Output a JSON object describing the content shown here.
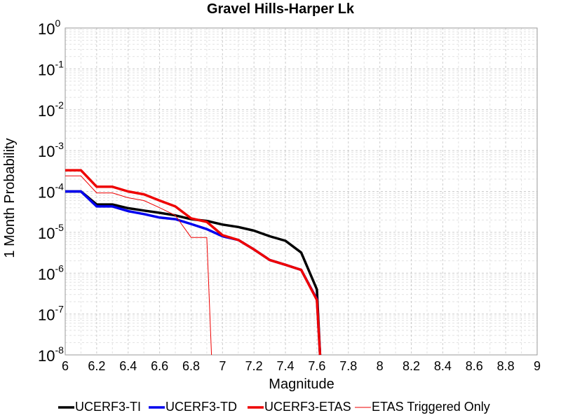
{
  "chart_data": {
    "type": "line",
    "title": "Gravel Hills-Harper Lk",
    "xlabel": "Magnitude",
    "ylabel": "1 Month Probability",
    "xlim": [
      6,
      9
    ],
    "ylim": [
      1e-08,
      1
    ],
    "yscale": "log",
    "grid": true,
    "legend_position": "bottom",
    "xticks": [
      "6",
      "6.2",
      "6.4",
      "6.6",
      "6.8",
      "7",
      "7.2",
      "7.4",
      "7.6",
      "7.8",
      "8",
      "8.2",
      "8.4",
      "8.6",
      "8.8",
      "9"
    ],
    "yticks": [
      {
        "base": "10",
        "exp": "-8",
        "value": 1e-08
      },
      {
        "base": "10",
        "exp": "-7",
        "value": 1e-07
      },
      {
        "base": "10",
        "exp": "-6",
        "value": 1e-06
      },
      {
        "base": "10",
        "exp": "-5",
        "value": 1e-05
      },
      {
        "base": "10",
        "exp": "-4",
        "value": 0.0001
      },
      {
        "base": "10",
        "exp": "-3",
        "value": 0.001
      },
      {
        "base": "10",
        "exp": "-2",
        "value": 0.01
      },
      {
        "base": "10",
        "exp": "-1",
        "value": 0.1
      },
      {
        "base": "10",
        "exp": "0",
        "value": 1
      }
    ],
    "series": [
      {
        "name": "UCERF3-TI",
        "color": "#000000",
        "width": 3.5,
        "points": [
          [
            6.0,
            0.0001
          ],
          [
            6.1,
            0.0001
          ],
          [
            6.2,
            4.8e-05
          ],
          [
            6.3,
            4.8e-05
          ],
          [
            6.4,
            3.9e-05
          ],
          [
            6.5,
            3.4e-05
          ],
          [
            6.6,
            3e-05
          ],
          [
            6.7,
            2.6e-05
          ],
          [
            6.8,
            2.1e-05
          ],
          [
            6.9,
            1.9e-05
          ],
          [
            7.0,
            1.55e-05
          ],
          [
            7.1,
            1.35e-05
          ],
          [
            7.2,
            1.1e-05
          ],
          [
            7.3,
            8e-06
          ],
          [
            7.4,
            6.2e-06
          ],
          [
            7.5,
            3.2e-06
          ],
          [
            7.6,
            4e-07
          ],
          [
            7.62,
            1e-08
          ]
        ]
      },
      {
        "name": "UCERF3-TD",
        "color": "#0000ee",
        "width": 3.5,
        "points": [
          [
            6.0,
            0.0001
          ],
          [
            6.1,
            0.0001
          ],
          [
            6.2,
            4.3e-05
          ],
          [
            6.3,
            4.3e-05
          ],
          [
            6.4,
            3.3e-05
          ],
          [
            6.5,
            2.8e-05
          ],
          [
            6.6,
            2.3e-05
          ],
          [
            6.7,
            2.1e-05
          ],
          [
            6.8,
            1.6e-05
          ],
          [
            6.9,
            1.2e-05
          ],
          [
            7.0,
            8e-06
          ],
          [
            7.1,
            6.5e-06
          ],
          [
            7.2,
            3.8e-06
          ],
          [
            7.3,
            2.1e-06
          ],
          [
            7.4,
            1.6e-06
          ],
          [
            7.5,
            1.2e-06
          ],
          [
            7.6,
            2.3e-07
          ],
          [
            7.62,
            1e-08
          ]
        ]
      },
      {
        "name": "UCERF3-ETAS",
        "color": "#ee0000",
        "width": 3.5,
        "points": [
          [
            6.0,
            0.00033
          ],
          [
            6.1,
            0.00033
          ],
          [
            6.2,
            0.00013
          ],
          [
            6.3,
            0.00013
          ],
          [
            6.4,
            0.0001
          ],
          [
            6.5,
            8.5e-05
          ],
          [
            6.6,
            6e-05
          ],
          [
            6.7,
            4.3e-05
          ],
          [
            6.8,
            2.2e-05
          ],
          [
            6.9,
            1.8e-05
          ],
          [
            7.0,
            8.5e-06
          ],
          [
            7.1,
            6.5e-06
          ],
          [
            7.2,
            3.8e-06
          ],
          [
            7.3,
            2.1e-06
          ],
          [
            7.4,
            1.6e-06
          ],
          [
            7.5,
            1.2e-06
          ],
          [
            7.6,
            2.2e-07
          ],
          [
            7.62,
            1e-08
          ]
        ]
      },
      {
        "name": "ETAS Triggered Only",
        "color": "#ee0000",
        "width": 1,
        "points": [
          [
            6.0,
            0.00024
          ],
          [
            6.1,
            0.00024
          ],
          [
            6.2,
            9.2e-05
          ],
          [
            6.3,
            9.2e-05
          ],
          [
            6.4,
            7e-05
          ],
          [
            6.5,
            6e-05
          ],
          [
            6.6,
            4e-05
          ],
          [
            6.7,
            2.6e-05
          ],
          [
            6.8,
            7.5e-06
          ],
          [
            6.9,
            7.5e-06
          ],
          [
            6.93,
            1e-08
          ]
        ]
      }
    ]
  }
}
